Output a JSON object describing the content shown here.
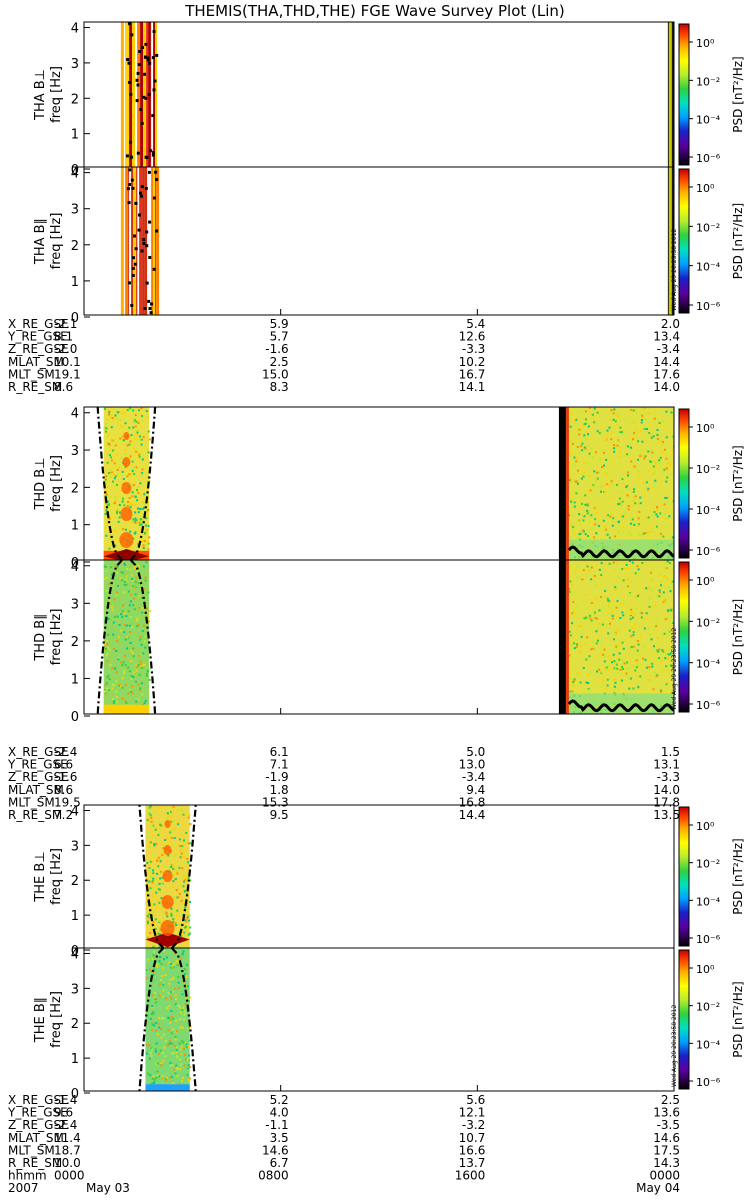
{
  "title": "THEMIS(THA,THD,THE) FGE Wave Survey Plot (Lin)",
  "stamp": "Wed Aug 29 20:23:58 2012",
  "colorbar_label": "PSD [nT²/Hz]",
  "colorbar_ticks": [
    "10⁰",
    "10⁻²",
    "10⁻⁴",
    "10⁻⁶"
  ],
  "freq_ticks": [
    "0",
    "1",
    "2",
    "3",
    "4"
  ],
  "ylabel_freq": "freq [Hz]",
  "palette": [
    "#000000",
    "#2a004a",
    "#1a20c8",
    "#00a0ff",
    "#00e0c0",
    "#30d040",
    "#b8ec30",
    "#ffff00",
    "#ffb000",
    "#ff4000",
    "#c00000"
  ],
  "probes": [
    {
      "panels": [
        "THA B⊥",
        "THA B∥"
      ],
      "ephem": [
        {
          "label": "X_RE_GSE",
          "values": [
            "-2.1",
            "5.9",
            "5.4",
            "2.0"
          ]
        },
        {
          "label": "Y_RE_GSE",
          "values": [
            "8.1",
            "5.7",
            "12.6",
            "13.4"
          ]
        },
        {
          "label": "Z_RE_GSE",
          "values": [
            "-2.0",
            "-1.6",
            "-3.3",
            "-3.4"
          ]
        },
        {
          "label": "MLAT_SM",
          "values": [
            "10.1",
            "2.5",
            "10.2",
            "14.4"
          ]
        },
        {
          "label": "MLT_SM",
          "values": [
            "19.1",
            "15.0",
            "16.7",
            "17.6"
          ]
        },
        {
          "label": "R_RE_SM",
          "values": [
            "8.6",
            "8.3",
            "14.1",
            "14.0"
          ]
        }
      ]
    },
    {
      "panels": [
        "THD B⊥",
        "THD B∥"
      ],
      "ephem": [
        {
          "label": "X_RE_GSE",
          "values": [
            "-2.4",
            "6.1",
            "5.0",
            "1.5"
          ]
        },
        {
          "label": "Y_RE_GSE",
          "values": [
            "6.6",
            "7.1",
            "13.0",
            "13.1"
          ]
        },
        {
          "label": "Z_RE_GSE",
          "values": [
            "-1.6",
            "-1.9",
            "-3.4",
            "-3.3"
          ]
        },
        {
          "label": "MLAT_SM",
          "values": [
            "8.6",
            "1.8",
            "9.4",
            "14.0"
          ]
        },
        {
          "label": "MLT_SM",
          "values": [
            "19.5",
            "15.3",
            "16.8",
            "17.8"
          ]
        },
        {
          "label": "R_RE_SM",
          "values": [
            "7.2",
            "9.5",
            "14.4",
            "13.5"
          ]
        }
      ]
    },
    {
      "panels": [
        "THE B⊥",
        "THE B∥"
      ],
      "ephem": [
        {
          "label": "X_RE_GSE",
          "values": [
            "-1.4",
            "5.2",
            "5.6",
            "2.5"
          ]
        },
        {
          "label": "Y_RE_GSE",
          "values": [
            "9.6",
            "4.0",
            "12.1",
            "13.6"
          ]
        },
        {
          "label": "Z_RE_GSE",
          "values": [
            "-2.4",
            "-1.1",
            "-3.2",
            "-3.5"
          ]
        },
        {
          "label": "MLAT_SM",
          "values": [
            "11.4",
            "3.5",
            "10.7",
            "14.6"
          ]
        },
        {
          "label": "MLT_SM",
          "values": [
            "18.7",
            "14.6",
            "16.6",
            "17.5"
          ]
        },
        {
          "label": "R_RE_SM",
          "values": [
            "10.0",
            "6.7",
            "13.7",
            "14.3"
          ]
        },
        {
          "label": "hhmm",
          "values": [
            "0000",
            "0800",
            "1600",
            "0000"
          ]
        }
      ]
    }
  ],
  "date_row": {
    "label": "2007",
    "values": [
      "May 03",
      "",
      "",
      "May 04"
    ]
  },
  "chart_data": {
    "type": "heatmap",
    "title": "THEMIS(THA,THD,THE) FGE Wave Survey Plot (Lin)",
    "x_axis": {
      "unit": "hhmm",
      "start": "2007-05-03 00:00",
      "end": "2007-05-04 00:00",
      "ticks": [
        "0000",
        "0800",
        "1600",
        "0000"
      ]
    },
    "y_axis": {
      "label": "freq [Hz]",
      "ylim": [
        0,
        4.1
      ],
      "ticks": [
        0,
        1,
        2,
        3,
        4
      ]
    },
    "colorbar": {
      "label": "PSD [nT²/Hz]",
      "scale": "log",
      "range": [
        1e-07,
        10.0
      ]
    },
    "data_intervals": [
      {
        "probe": "THA",
        "start_hour": 1.5,
        "end_hour": 3.0,
        "kind": "patchy strips"
      },
      {
        "probe": "THA",
        "start_hour": 23.8,
        "end_hour": 24.0,
        "kind": "narrow strip"
      },
      {
        "probe": "THD",
        "start_hour": 0.8,
        "end_hour": 2.6,
        "kind": "spectrogram"
      },
      {
        "probe": "THD",
        "start_hour": 19.4,
        "end_hour": 24.0,
        "kind": "spectrogram"
      },
      {
        "probe": "THE",
        "start_hour": 2.5,
        "end_hour": 4.3,
        "kind": "spectrogram"
      }
    ]
  }
}
